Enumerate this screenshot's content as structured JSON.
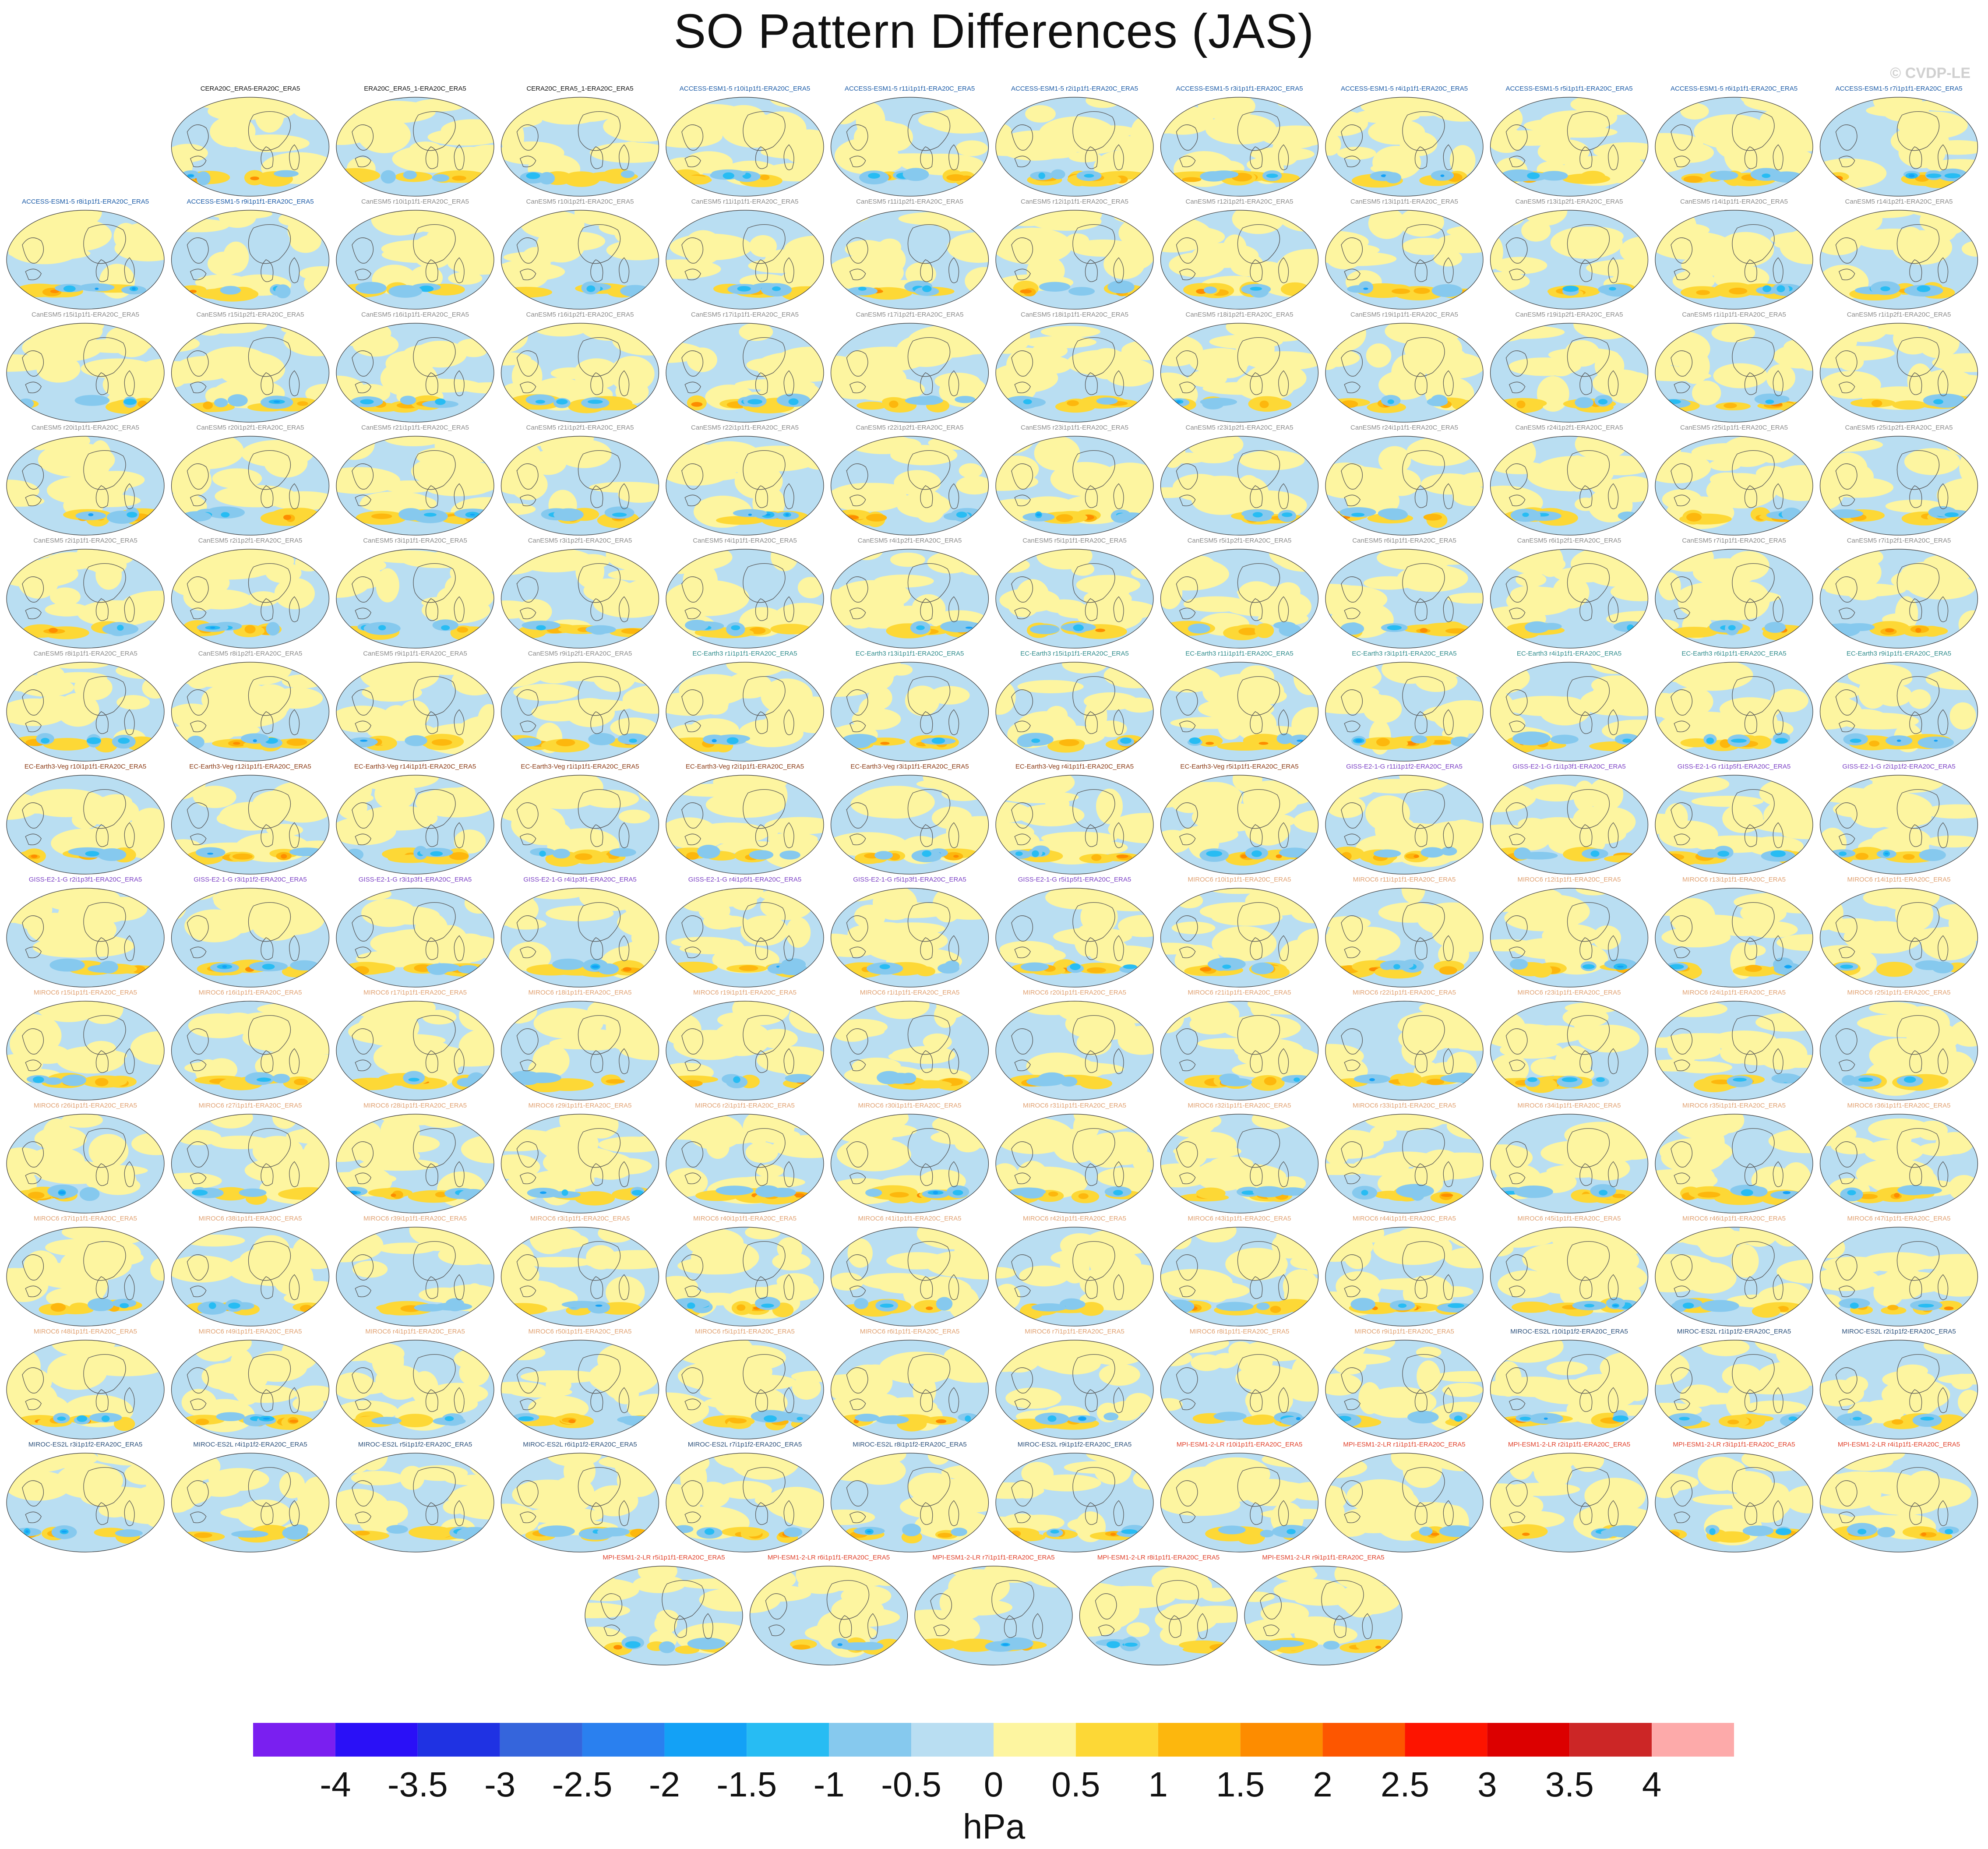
{
  "title": "SO Pattern Differences (JAS)",
  "copyright": "© CVDP-LE",
  "chart_data": {
    "type": "heatmap",
    "title": "SO Pattern Differences (JAS)",
    "units": "hPa",
    "colorbar": {
      "tick_labels": [
        "-4",
        "-3.5",
        "-3",
        "-2.5",
        "-2",
        "-1.5",
        "-1",
        "-0.5",
        "0",
        "0.5",
        "1",
        "1.5",
        "2",
        "2.5",
        "3",
        "3.5",
        "4"
      ],
      "levels": [
        -4,
        -3.5,
        -3,
        -2.5,
        -2,
        -1.5,
        -1,
        -0.5,
        0,
        0.5,
        1,
        1.5,
        2,
        2.5,
        3,
        3.5,
        4
      ],
      "colors": [
        "#7a1ff0",
        "#2a10f7",
        "#1f32e3",
        "#3565dc",
        "#2a80ef",
        "#13a1f6",
        "#27bcf3",
        "#86c9ee",
        "#b9def2",
        "#fdf5a0",
        "#fdd836",
        "#fdb70d",
        "#fd8c00",
        "#fd5600",
        "#fd1400",
        "#dc0000",
        "#cc2626",
        "#fdaaaa"
      ]
    },
    "panels": [
      {
        "label": "CERA20C_ERA5-ERA20C_ERA5",
        "group": "obs"
      },
      {
        "label": "ERA20C_ERA5_1-ERA20C_ERA5",
        "group": "obs"
      },
      {
        "label": "CERA20C_ERA5_1-ERA20C_ERA5",
        "group": "obs"
      },
      {
        "label": "ACCESS-ESM1-5 r10i1p1f1-ERA20C_ERA5",
        "group": "ACCESS"
      },
      {
        "label": "ACCESS-ESM1-5 r11i1p1f1-ERA20C_ERA5",
        "group": "ACCESS"
      },
      {
        "label": "ACCESS-ESM1-5 r2i1p1f1-ERA20C_ERA5",
        "group": "ACCESS"
      },
      {
        "label": "ACCESS-ESM1-5 r3i1p1f1-ERA20C_ERA5",
        "group": "ACCESS"
      },
      {
        "label": "ACCESS-ESM1-5 r4i1p1f1-ERA20C_ERA5",
        "group": "ACCESS"
      },
      {
        "label": "ACCESS-ESM1-5 r5i1p1f1-ERA20C_ERA5",
        "group": "ACCESS"
      },
      {
        "label": "ACCESS-ESM1-5 r6i1p1f1-ERA20C_ERA5",
        "group": "ACCESS"
      },
      {
        "label": "ACCESS-ESM1-5 r7i1p1f1-ERA20C_ERA5",
        "group": "ACCESS"
      },
      {
        "label": "ACCESS-ESM1-5 r8i1p1f1-ERA20C_ERA5",
        "group": "ACCESS"
      },
      {
        "label": "ACCESS-ESM1-5 r9i1p1f1-ERA20C_ERA5",
        "group": "ACCESS"
      },
      {
        "label": "CanESM5 r10i1p1f1-ERA20C_ERA5",
        "group": "CanESM5"
      },
      {
        "label": "CanESM5 r10i1p2f1-ERA20C_ERA5",
        "group": "CanESM5"
      },
      {
        "label": "CanESM5 r11i1p1f1-ERA20C_ERA5",
        "group": "CanESM5"
      },
      {
        "label": "CanESM5 r11i1p2f1-ERA20C_ERA5",
        "group": "CanESM5"
      },
      {
        "label": "CanESM5 r12i1p1f1-ERA20C_ERA5",
        "group": "CanESM5"
      },
      {
        "label": "CanESM5 r12i1p2f1-ERA20C_ERA5",
        "group": "CanESM5"
      },
      {
        "label": "CanESM5 r13i1p1f1-ERA20C_ERA5",
        "group": "CanESM5"
      },
      {
        "label": "CanESM5 r13i1p2f1-ERA20C_ERA5",
        "group": "CanESM5"
      },
      {
        "label": "CanESM5 r14i1p1f1-ERA20C_ERA5",
        "group": "CanESM5"
      },
      {
        "label": "CanESM5 r14i1p2f1-ERA20C_ERA5",
        "group": "CanESM5"
      },
      {
        "label": "CanESM5 r15i1p1f1-ERA20C_ERA5",
        "group": "CanESM5"
      },
      {
        "label": "CanESM5 r15i1p2f1-ERA20C_ERA5",
        "group": "CanESM5"
      },
      {
        "label": "CanESM5 r16i1p1f1-ERA20C_ERA5",
        "group": "CanESM5"
      },
      {
        "label": "CanESM5 r16i1p2f1-ERA20C_ERA5",
        "group": "CanESM5"
      },
      {
        "label": "CanESM5 r17i1p1f1-ERA20C_ERA5",
        "group": "CanESM5"
      },
      {
        "label": "CanESM5 r17i1p2f1-ERA20C_ERA5",
        "group": "CanESM5"
      },
      {
        "label": "CanESM5 r18i1p1f1-ERA20C_ERA5",
        "group": "CanESM5"
      },
      {
        "label": "CanESM5 r18i1p2f1-ERA20C_ERA5",
        "group": "CanESM5"
      },
      {
        "label": "CanESM5 r19i1p1f1-ERA20C_ERA5",
        "group": "CanESM5"
      },
      {
        "label": "CanESM5 r19i1p2f1-ERA20C_ERA5",
        "group": "CanESM5"
      },
      {
        "label": "CanESM5 r1i1p1f1-ERA20C_ERA5",
        "group": "CanESM5"
      },
      {
        "label": "CanESM5 r1i1p2f1-ERA20C_ERA5",
        "group": "CanESM5"
      },
      {
        "label": "CanESM5 r20i1p1f1-ERA20C_ERA5",
        "group": "CanESM5"
      },
      {
        "label": "CanESM5 r20i1p2f1-ERA20C_ERA5",
        "group": "CanESM5"
      },
      {
        "label": "CanESM5 r21i1p1f1-ERA20C_ERA5",
        "group": "CanESM5"
      },
      {
        "label": "CanESM5 r21i1p2f1-ERA20C_ERA5",
        "group": "CanESM5"
      },
      {
        "label": "CanESM5 r22i1p1f1-ERA20C_ERA5",
        "group": "CanESM5"
      },
      {
        "label": "CanESM5 r22i1p2f1-ERA20C_ERA5",
        "group": "CanESM5"
      },
      {
        "label": "CanESM5 r23i1p1f1-ERA20C_ERA5",
        "group": "CanESM5"
      },
      {
        "label": "CanESM5 r23i1p2f1-ERA20C_ERA5",
        "group": "CanESM5"
      },
      {
        "label": "CanESM5 r24i1p1f1-ERA20C_ERA5",
        "group": "CanESM5"
      },
      {
        "label": "CanESM5 r24i1p2f1-ERA20C_ERA5",
        "group": "CanESM5"
      },
      {
        "label": "CanESM5 r25i1p1f1-ERA20C_ERA5",
        "group": "CanESM5"
      },
      {
        "label": "CanESM5 r25i1p2f1-ERA20C_ERA5",
        "group": "CanESM5"
      },
      {
        "label": "CanESM5 r2i1p1f1-ERA20C_ERA5",
        "group": "CanESM5"
      },
      {
        "label": "CanESM5 r2i1p2f1-ERA20C_ERA5",
        "group": "CanESM5"
      },
      {
        "label": "CanESM5 r3i1p1f1-ERA20C_ERA5",
        "group": "CanESM5"
      },
      {
        "label": "CanESM5 r3i1p2f1-ERA20C_ERA5",
        "group": "CanESM5"
      },
      {
        "label": "CanESM5 r4i1p1f1-ERA20C_ERA5",
        "group": "CanESM5"
      },
      {
        "label": "CanESM5 r4i1p2f1-ERA20C_ERA5",
        "group": "CanESM5"
      },
      {
        "label": "CanESM5 r5i1p1f1-ERA20C_ERA5",
        "group": "CanESM5"
      },
      {
        "label": "CanESM5 r5i1p2f1-ERA20C_ERA5",
        "group": "CanESM5"
      },
      {
        "label": "CanESM5 r6i1p1f1-ERA20C_ERA5",
        "group": "CanESM5"
      },
      {
        "label": "CanESM5 r6i1p2f1-ERA20C_ERA5",
        "group": "CanESM5"
      },
      {
        "label": "CanESM5 r7i1p1f1-ERA20C_ERA5",
        "group": "CanESM5"
      },
      {
        "label": "CanESM5 r7i1p2f1-ERA20C_ERA5",
        "group": "CanESM5"
      },
      {
        "label": "CanESM5 r8i1p1f1-ERA20C_ERA5",
        "group": "CanESM5"
      },
      {
        "label": "CanESM5 r8i1p2f1-ERA20C_ERA5",
        "group": "CanESM5"
      },
      {
        "label": "CanESM5 r9i1p1f1-ERA20C_ERA5",
        "group": "CanESM5"
      },
      {
        "label": "CanESM5 r9i1p2f1-ERA20C_ERA5",
        "group": "CanESM5"
      },
      {
        "label": "EC-Earth3 r1i1p1f1-ERA20C_ERA5",
        "group": "EC-Earth3"
      },
      {
        "label": "EC-Earth3 r13i1p1f1-ERA20C_ERA5",
        "group": "EC-Earth3"
      },
      {
        "label": "EC-Earth3 r15i1p1f1-ERA20C_ERA5",
        "group": "EC-Earth3"
      },
      {
        "label": "EC-Earth3 r11i1p1f1-ERA20C_ERA5",
        "group": "EC-Earth3"
      },
      {
        "label": "EC-Earth3 r3i1p1f1-ERA20C_ERA5",
        "group": "EC-Earth3"
      },
      {
        "label": "EC-Earth3 r4i1p1f1-ERA20C_ERA5",
        "group": "EC-Earth3"
      },
      {
        "label": "EC-Earth3 r6i1p1f1-ERA20C_ERA5",
        "group": "EC-Earth3"
      },
      {
        "label": "EC-Earth3 r9i1p1f1-ERA20C_ERA5",
        "group": "EC-Earth3"
      },
      {
        "label": "EC-Earth3-Veg r10i1p1f1-ERA20C_ERA5",
        "group": "EC-Earth3-Veg"
      },
      {
        "label": "EC-Earth3-Veg r12i1p1f1-ERA20C_ERA5",
        "group": "EC-Earth3-Veg"
      },
      {
        "label": "EC-Earth3-Veg r14i1p1f1-ERA20C_ERA5",
        "group": "EC-Earth3-Veg"
      },
      {
        "label": "EC-Earth3-Veg r1i1p1f1-ERA20C_ERA5",
        "group": "EC-Earth3-Veg"
      },
      {
        "label": "EC-Earth3-Veg r2i1p1f1-ERA20C_ERA5",
        "group": "EC-Earth3-Veg"
      },
      {
        "label": "EC-Earth3-Veg r3i1p1f1-ERA20C_ERA5",
        "group": "EC-Earth3-Veg"
      },
      {
        "label": "EC-Earth3-Veg r4i1p1f1-ERA20C_ERA5",
        "group": "EC-Earth3-Veg"
      },
      {
        "label": "EC-Earth3-Veg r5i1p1f1-ERA20C_ERA5",
        "group": "EC-Earth3-Veg"
      },
      {
        "label": "GISS-E2-1-G r11i1p1f2-ERA20C_ERA5",
        "group": "GISS"
      },
      {
        "label": "GISS-E2-1-G r1i1p3f1-ERA20C_ERA5",
        "group": "GISS"
      },
      {
        "label": "GISS-E2-1-G r1i1p5f1-ERA20C_ERA5",
        "group": "GISS"
      },
      {
        "label": "GISS-E2-1-G r2i1p1f2-ERA20C_ERA5",
        "group": "GISS"
      },
      {
        "label": "GISS-E2-1-G r2i1p3f1-ERA20C_ERA5",
        "group": "GISS"
      },
      {
        "label": "GISS-E2-1-G r3i1p1f2-ERA20C_ERA5",
        "group": "GISS"
      },
      {
        "label": "GISS-E2-1-G r3i1p3f1-ERA20C_ERA5",
        "group": "GISS"
      },
      {
        "label": "GISS-E2-1-G r4i1p3f1-ERA20C_ERA5",
        "group": "GISS"
      },
      {
        "label": "GISS-E2-1-G r4i1p5f1-ERA20C_ERA5",
        "group": "GISS"
      },
      {
        "label": "GISS-E2-1-G r5i1p3f1-ERA20C_ERA5",
        "group": "GISS"
      },
      {
        "label": "GISS-E2-1-G r5i1p5f1-ERA20C_ERA5",
        "group": "GISS"
      },
      {
        "label": "MIROC6 r10i1p1f1-ERA20C_ERA5",
        "group": "MIROC6"
      },
      {
        "label": "MIROC6 r11i1p1f1-ERA20C_ERA5",
        "group": "MIROC6"
      },
      {
        "label": "MIROC6 r12i1p1f1-ERA20C_ERA5",
        "group": "MIROC6"
      },
      {
        "label": "MIROC6 r13i1p1f1-ERA20C_ERA5",
        "group": "MIROC6"
      },
      {
        "label": "MIROC6 r14i1p1f1-ERA20C_ERA5",
        "group": "MIROC6"
      },
      {
        "label": "MIROC6 r15i1p1f1-ERA20C_ERA5",
        "group": "MIROC6"
      },
      {
        "label": "MIROC6 r16i1p1f1-ERA20C_ERA5",
        "group": "MIROC6"
      },
      {
        "label": "MIROC6 r17i1p1f1-ERA20C_ERA5",
        "group": "MIROC6"
      },
      {
        "label": "MIROC6 r18i1p1f1-ERA20C_ERA5",
        "group": "MIROC6"
      },
      {
        "label": "MIROC6 r19i1p1f1-ERA20C_ERA5",
        "group": "MIROC6"
      },
      {
        "label": "MIROC6 r1i1p1f1-ERA20C_ERA5",
        "group": "MIROC6"
      },
      {
        "label": "MIROC6 r20i1p1f1-ERA20C_ERA5",
        "group": "MIROC6"
      },
      {
        "label": "MIROC6 r21i1p1f1-ERA20C_ERA5",
        "group": "MIROC6"
      },
      {
        "label": "MIROC6 r22i1p1f1-ERA20C_ERA5",
        "group": "MIROC6"
      },
      {
        "label": "MIROC6 r23i1p1f1-ERA20C_ERA5",
        "group": "MIROC6"
      },
      {
        "label": "MIROC6 r24i1p1f1-ERA20C_ERA5",
        "group": "MIROC6"
      },
      {
        "label": "MIROC6 r25i1p1f1-ERA20C_ERA5",
        "group": "MIROC6"
      },
      {
        "label": "MIROC6 r26i1p1f1-ERA20C_ERA5",
        "group": "MIROC6"
      },
      {
        "label": "MIROC6 r27i1p1f1-ERA20C_ERA5",
        "group": "MIROC6"
      },
      {
        "label": "MIROC6 r28i1p1f1-ERA20C_ERA5",
        "group": "MIROC6"
      },
      {
        "label": "MIROC6 r29i1p1f1-ERA20C_ERA5",
        "group": "MIROC6"
      },
      {
        "label": "MIROC6 r2i1p1f1-ERA20C_ERA5",
        "group": "MIROC6"
      },
      {
        "label": "MIROC6 r30i1p1f1-ERA20C_ERA5",
        "group": "MIROC6"
      },
      {
        "label": "MIROC6 r31i1p1f1-ERA20C_ERA5",
        "group": "MIROC6"
      },
      {
        "label": "MIROC6 r32i1p1f1-ERA20C_ERA5",
        "group": "MIROC6"
      },
      {
        "label": "MIROC6 r33i1p1f1-ERA20C_ERA5",
        "group": "MIROC6"
      },
      {
        "label": "MIROC6 r34i1p1f1-ERA20C_ERA5",
        "group": "MIROC6"
      },
      {
        "label": "MIROC6 r35i1p1f1-ERA20C_ERA5",
        "group": "MIROC6"
      },
      {
        "label": "MIROC6 r36i1p1f1-ERA20C_ERA5",
        "group": "MIROC6"
      },
      {
        "label": "MIROC6 r37i1p1f1-ERA20C_ERA5",
        "group": "MIROC6"
      },
      {
        "label": "MIROC6 r38i1p1f1-ERA20C_ERA5",
        "group": "MIROC6"
      },
      {
        "label": "MIROC6 r39i1p1f1-ERA20C_ERA5",
        "group": "MIROC6"
      },
      {
        "label": "MIROC6 r3i1p1f1-ERA20C_ERA5",
        "group": "MIROC6"
      },
      {
        "label": "MIROC6 r40i1p1f1-ERA20C_ERA5",
        "group": "MIROC6"
      },
      {
        "label": "MIROC6 r41i1p1f1-ERA20C_ERA5",
        "group": "MIROC6"
      },
      {
        "label": "MIROC6 r42i1p1f1-ERA20C_ERA5",
        "group": "MIROC6"
      },
      {
        "label": "MIROC6 r43i1p1f1-ERA20C_ERA5",
        "group": "MIROC6"
      },
      {
        "label": "MIROC6 r44i1p1f1-ERA20C_ERA5",
        "group": "MIROC6"
      },
      {
        "label": "MIROC6 r45i1p1f1-ERA20C_ERA5",
        "group": "MIROC6"
      },
      {
        "label": "MIROC6 r46i1p1f1-ERA20C_ERA5",
        "group": "MIROC6"
      },
      {
        "label": "MIROC6 r47i1p1f1-ERA20C_ERA5",
        "group": "MIROC6"
      },
      {
        "label": "MIROC6 r48i1p1f1-ERA20C_ERA5",
        "group": "MIROC6"
      },
      {
        "label": "MIROC6 r49i1p1f1-ERA20C_ERA5",
        "group": "MIROC6"
      },
      {
        "label": "MIROC6 r4i1p1f1-ERA20C_ERA5",
        "group": "MIROC6"
      },
      {
        "label": "MIROC6 r50i1p1f1-ERA20C_ERA5",
        "group": "MIROC6"
      },
      {
        "label": "MIROC6 r5i1p1f1-ERA20C_ERA5",
        "group": "MIROC6"
      },
      {
        "label": "MIROC6 r6i1p1f1-ERA20C_ERA5",
        "group": "MIROC6"
      },
      {
        "label": "MIROC6 r7i1p1f1-ERA20C_ERA5",
        "group": "MIROC6"
      },
      {
        "label": "MIROC6 r8i1p1f1-ERA20C_ERA5",
        "group": "MIROC6"
      },
      {
        "label": "MIROC6 r9i1p1f1-ERA20C_ERA5",
        "group": "MIROC6"
      },
      {
        "label": "MIROC-ES2L r10i1p1f2-ERA20C_ERA5",
        "group": "MIROC-ES2L"
      },
      {
        "label": "MIROC-ES2L r1i1p1f2-ERA20C_ERA5",
        "group": "MIROC-ES2L"
      },
      {
        "label": "MIROC-ES2L r2i1p1f2-ERA20C_ERA5",
        "group": "MIROC-ES2L"
      },
      {
        "label": "MIROC-ES2L r3i1p1f2-ERA20C_ERA5",
        "group": "MIROC-ES2L"
      },
      {
        "label": "MIROC-ES2L r4i1p1f2-ERA20C_ERA5",
        "group": "MIROC-ES2L"
      },
      {
        "label": "MIROC-ES2L r5i1p1f2-ERA20C_ERA5",
        "group": "MIROC-ES2L"
      },
      {
        "label": "MIROC-ES2L r6i1p1f2-ERA20C_ERA5",
        "group": "MIROC-ES2L"
      },
      {
        "label": "MIROC-ES2L r7i1p1f2-ERA20C_ERA5",
        "group": "MIROC-ES2L"
      },
      {
        "label": "MIROC-ES2L r8i1p1f2-ERA20C_ERA5",
        "group": "MIROC-ES2L"
      },
      {
        "label": "MIROC-ES2L r9i1p1f2-ERA20C_ERA5",
        "group": "MIROC-ES2L"
      },
      {
        "label": "MPI-ESM1-2-LR r10i1p1f1-ERA20C_ERA5",
        "group": "MPI"
      },
      {
        "label": "MPI-ESM1-2-LR r1i1p1f1-ERA20C_ERA5",
        "group": "MPI"
      },
      {
        "label": "MPI-ESM1-2-LR r2i1p1f1-ERA20C_ERA5",
        "group": "MPI"
      },
      {
        "label": "MPI-ESM1-2-LR r3i1p1f1-ERA20C_ERA5",
        "group": "MPI"
      },
      {
        "label": "MPI-ESM1-2-LR r4i1p1f1-ERA20C_ERA5",
        "group": "MPI"
      },
      {
        "label": "MPI-ESM1-2-LR r5i1p1f1-ERA20C_ERA5",
        "group": "MPI"
      },
      {
        "label": "MPI-ESM1-2-LR r6i1p1f1-ERA20C_ERA5",
        "group": "MPI"
      },
      {
        "label": "MPI-ESM1-2-LR r7i1p1f1-ERA20C_ERA5",
        "group": "MPI"
      },
      {
        "label": "MPI-ESM1-2-LR r8i1p1f1-ERA20C_ERA5",
        "group": "MPI"
      },
      {
        "label": "MPI-ESM1-2-LR r9i1p1f1-ERA20C_ERA5",
        "group": "MPI"
      }
    ],
    "group_colors": {
      "obs": "#111111",
      "ACCESS": "#1a5aa6",
      "CanESM5": "#8a8a8a",
      "EC-Earth3": "#2e8b8b",
      "EC-Earth3-Veg": "#8b3a14",
      "GISS": "#7a3fc4",
      "MIROC6": "#e0a070",
      "MIROC-ES2L": "#2a4f7a",
      "MPI": "#e0402a"
    }
  }
}
